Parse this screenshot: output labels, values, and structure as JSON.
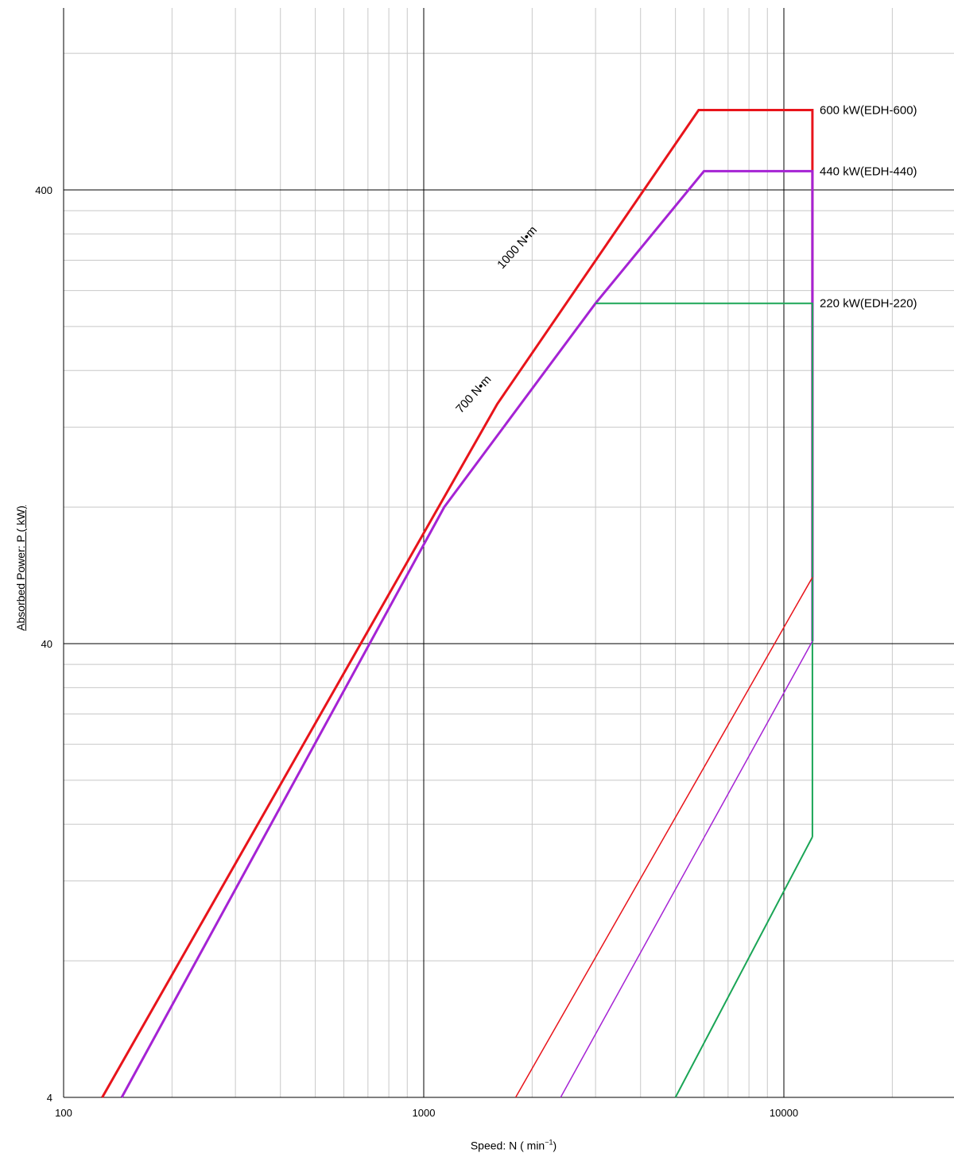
{
  "chart_data": {
    "type": "line",
    "xscale": "log",
    "yscale": "log",
    "xlim": [
      100,
      30000
    ],
    "ylim": [
      4,
      800
    ],
    "grid": true,
    "x_ticks": [
      "100",
      "1000",
      "10000"
    ],
    "y_ticks": [
      "4",
      "40",
      "400"
    ],
    "xlabel": {
      "prefix": "Speed: N (",
      "unit": " min",
      "sup": "−1",
      "suffix": ")"
    },
    "ylabel": "Absorbed Power: P ( kW)",
    "colors": {
      "red": "#e8141b",
      "purple": "#a523d4",
      "green": "#1aa556",
      "grid_major": "#000000",
      "grid_minor": "#c8c8c8"
    },
    "series": [
      {
        "name": "600 kW(EDH-600)",
        "color": "#e8141b",
        "width": 3,
        "points": [
          [
            128,
            4
          ],
          [
            1600,
            135
          ],
          [
            5800,
            600
          ],
          [
            12000,
            600
          ],
          [
            12000,
            56
          ]
        ]
      },
      {
        "name": "440 kW(EDH-440)",
        "color": "#a523d4",
        "width": 3,
        "points": [
          [
            145,
            4
          ],
          [
            1140,
            80
          ],
          [
            3000,
            225
          ],
          [
            6000,
            440
          ],
          [
            12000,
            440
          ],
          [
            12000,
            40.5
          ]
        ]
      },
      {
        "name": "220 kW(EDH-220)",
        "color": "#1aa556",
        "width": 2,
        "points": [
          [
            3000,
            225
          ],
          [
            12000,
            225
          ],
          [
            12000,
            15
          ]
        ]
      },
      {
        "color": "#e8141b",
        "width": 1.5,
        "points": [
          [
            1800,
            4
          ],
          [
            12000,
            56
          ]
        ]
      },
      {
        "color": "#a523d4",
        "width": 1.5,
        "points": [
          [
            2400,
            4
          ],
          [
            12000,
            40.5
          ]
        ]
      },
      {
        "color": "#1aa556",
        "width": 2,
        "points": [
          [
            5000,
            4
          ],
          [
            12000,
            15
          ]
        ]
      }
    ],
    "annotations": [
      {
        "text": "1000 N•m",
        "x": 1850,
        "y": 295,
        "color": "#000000"
      },
      {
        "text": "700 N•m",
        "x": 1400,
        "y": 140,
        "color": "#000000"
      }
    ],
    "legend_labels": [
      {
        "text": "600 kW(EDH-600)",
        "y": 600
      },
      {
        "text": "440 kW(EDH-440)",
        "y": 440
      },
      {
        "text": "220 kW(EDH-220)",
        "y": 225
      }
    ]
  }
}
